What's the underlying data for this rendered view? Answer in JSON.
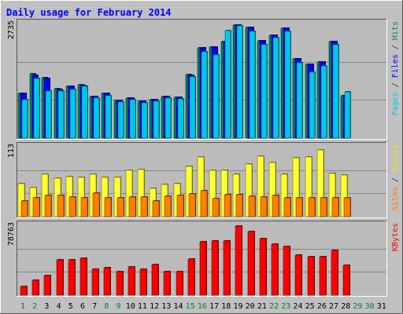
{
  "chart_data": {
    "type": "bar",
    "title": "Daily usage for February 2014",
    "x": [
      "1",
      "2",
      "3",
      "4",
      "5",
      "6",
      "7",
      "8",
      "9",
      "10",
      "11",
      "12",
      "13",
      "14",
      "15",
      "16",
      "17",
      "18",
      "19",
      "20",
      "21",
      "22",
      "23",
      "24",
      "25",
      "26",
      "27",
      "28",
      "29",
      "30",
      "31"
    ],
    "weekend_days": [
      "1",
      "2",
      "8",
      "9",
      "15",
      "16",
      "22",
      "23",
      "29",
      "30"
    ],
    "panels": [
      {
        "id": "hits",
        "ymax_label": "2735",
        "ylim": [
          0,
          2735
        ],
        "label_parts": [
          {
            "text": "Pages",
            "color": "#00c8e8"
          },
          {
            "text": " / ",
            "color": "#333333"
          },
          {
            "text": "Files",
            "color": "#0000ff"
          },
          {
            "text": " / ",
            "color": "#333333"
          },
          {
            "text": "Hits",
            "color": "#008060"
          }
        ],
        "series": [
          {
            "name": "Hits",
            "color": "#00805c",
            "values": [
              1060,
              1530,
              1450,
              1180,
              1230,
              1270,
              1000,
              1060,
              890,
              960,
              880,
              920,
              990,
              980,
              1520,
              2150,
              2180,
              2300,
              2690,
              2650,
              2330,
              2460,
              2630,
              1890,
              1760,
              1820,
              2300,
              1020,
              0,
              0,
              0
            ]
          },
          {
            "name": "Files",
            "color": "#0000ff",
            "values": [
              1060,
              1490,
              1420,
              1170,
              1230,
              1260,
              1000,
              1060,
              890,
              950,
              880,
              920,
              990,
              970,
              1500,
              2150,
              2180,
              2300,
              2690,
              2650,
              2330,
              2460,
              2630,
              1890,
              1760,
              1820,
              2300,
              1020,
              0,
              0,
              0
            ]
          },
          {
            "name": "Pages",
            "color": "#00c8e8",
            "values": [
              920,
              1430,
              1130,
              1130,
              1160,
              1230,
              960,
              1020,
              860,
              920,
              850,
              880,
              950,
              940,
              1470,
              2060,
              1990,
              2560,
              2680,
              2550,
              2230,
              2390,
              2540,
              1800,
              1580,
              1720,
              2220,
              1110,
              0,
              0,
              0
            ]
          }
        ]
      },
      {
        "id": "visits",
        "ymax_label": "113",
        "ylim": [
          0,
          113
        ],
        "label_parts": [
          {
            "text": "Sites",
            "color": "#ff8000"
          },
          {
            "text": " / ",
            "color": "#333333"
          },
          {
            "text": "Visits",
            "color": "#e8e800"
          }
        ],
        "series": [
          {
            "name": "Visits",
            "color": "#ffff33",
            "values": [
              53,
              47,
              69,
              62,
              65,
              63,
              69,
              64,
              64,
              75,
              76,
              46,
              52,
              53,
              81,
              96,
              75,
              75,
              69,
              85,
              98,
              88,
              68,
              95,
              97,
              108,
              70,
              67,
              0,
              0,
              0
            ]
          },
          {
            "name": "Sites",
            "color": "#ff8000",
            "values": [
              26,
              30,
              34,
              34,
              32,
              31,
              38,
              31,
              31,
              32,
              32,
              25,
              33,
              34,
              37,
              42,
              29,
              35,
              36,
              33,
              32,
              34,
              30,
              30,
              30,
              30,
              31,
              31,
              0,
              0,
              0
            ]
          }
        ]
      },
      {
        "id": "kbytes",
        "ymax_label": "78763",
        "ylim": [
          0,
          78763
        ],
        "label_parts": [
          {
            "text": "KBytes",
            "color": "#ff0000"
          }
        ],
        "series": [
          {
            "name": "KBytes",
            "color": "#ff0000",
            "values": [
              9970,
              16550,
              21800,
              40200,
              39900,
              41300,
              28900,
              30600,
              26600,
              31500,
              29600,
              34200,
              26800,
              26300,
              40500,
              60300,
              61400,
              61300,
              77500,
              71600,
              63600,
              57300,
              55000,
              45000,
              43700,
              43700,
              50200,
              33800,
              0,
              0,
              0
            ]
          }
        ]
      }
    ]
  }
}
